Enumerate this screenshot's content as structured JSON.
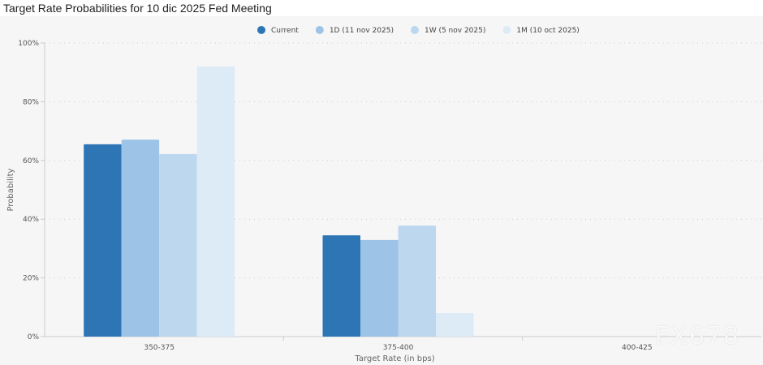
{
  "chart_data": {
    "type": "bar",
    "title": "Target Rate Probabilities for 10 dic 2025 Fed Meeting",
    "xlabel": "Target Rate (in bps)",
    "ylabel": "Probability",
    "categories": [
      "350-375",
      "375-400",
      "400-425"
    ],
    "ylim": [
      0,
      100
    ],
    "yticks": [
      "0%",
      "20%",
      "40%",
      "60%",
      "80%",
      "100%"
    ],
    "grid": true,
    "legend": "top-center",
    "series": [
      {
        "name": "Current",
        "color": "#2e75b6",
        "values": [
          65.5,
          34.5,
          0
        ]
      },
      {
        "name": "1D (11 nov 2025)",
        "color": "#9dc3e6",
        "values": [
          67.1,
          32.9,
          0
        ]
      },
      {
        "name": "1W (5 nov 2025)",
        "color": "#bdd7ee",
        "values": [
          62.2,
          37.8,
          0
        ]
      },
      {
        "name": "1M (10 oct 2025)",
        "color": "#ddebf7",
        "values": [
          92.0,
          8.0,
          0
        ]
      }
    ]
  },
  "watermark": "FX678"
}
